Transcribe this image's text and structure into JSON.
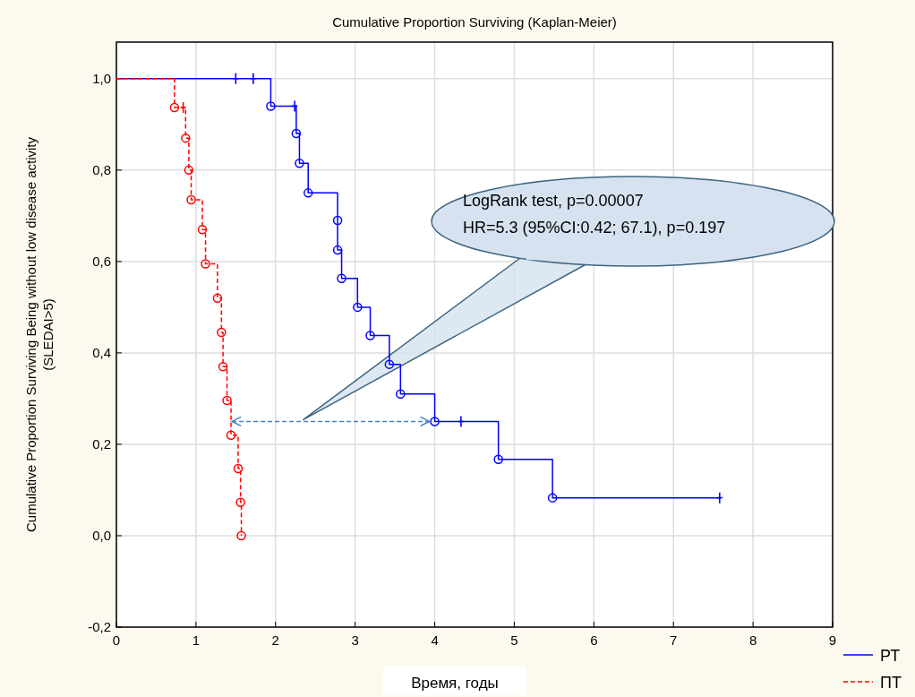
{
  "chart_data": {
    "type": "step",
    "title": "Cumulative Proportion Surviving (Kaplan-Meier)",
    "xlabel": "Время, годы",
    "ylabel": "Cumulative Proportion Surviving Being without low disease activity\n(SLEDAI>5)",
    "xlim": [
      0,
      9
    ],
    "xticks": [
      0,
      1,
      2,
      3,
      4,
      5,
      6,
      7,
      8,
      9
    ],
    "ylim": [
      -0.2,
      1.08
    ],
    "yticks": [
      {
        "value": -0.2,
        "label": "-0,2"
      },
      {
        "value": 0,
        "label": "0,0"
      },
      {
        "value": 0.2,
        "label": "0,2"
      },
      {
        "value": 0.4,
        "label": "0,4"
      },
      {
        "value": 0.6,
        "label": "0,6"
      },
      {
        "value": 0.8,
        "label": "0,8"
      },
      {
        "value": 1,
        "label": "1,0"
      }
    ],
    "grid": true,
    "legend": "bottom right",
    "annotations": [
      "LogRank test, p=0.00007",
      "HR=5.3 (95%CI:0.42; 67.1), p=0.197"
    ],
    "series": [
      {
        "name": "РТ",
        "color": "#0000ff",
        "line_style": "solid",
        "marker": "none",
        "x": [
          0,
          1.94,
          2.26,
          2.3,
          2.41,
          2.78,
          2.78,
          2.83,
          3.03,
          3.19,
          3.43,
          3.57,
          4.0,
          4.8,
          5.48,
          7.58
        ],
        "values": [
          1,
          0.94,
          0.88,
          0.815,
          0.75,
          0.69,
          0.625,
          0.563,
          0.5,
          0.438,
          0.375,
          0.31,
          0.25,
          0.167,
          0.083,
          0.083
        ]
      },
      {
        "name": "ПТ",
        "color": "#ff0000",
        "line_style": "dashed",
        "marker": "none",
        "x": [
          0,
          0.73,
          0.87,
          0.91,
          0.94,
          1.08,
          1.12,
          1.27,
          1.32,
          1.34,
          1.39,
          1.44,
          1.53,
          1.56,
          1.57
        ],
        "values": [
          1,
          0.937,
          0.87,
          0.8,
          0.735,
          0.67,
          0.595,
          0.52,
          0.445,
          0.37,
          0.296,
          0.22,
          0.147,
          0.073,
          0
        ]
      },
      {
        "type": "scatter",
        "color": "#0000ff",
        "marker": "circle",
        "x": [
          1.94,
          2.26,
          2.3,
          2.41,
          2.78,
          2.78,
          2.83,
          3.03,
          3.19,
          3.43,
          3.57,
          4.0,
          4.8,
          5.48
        ],
        "values": [
          0.94,
          0.88,
          0.815,
          0.75,
          0.69,
          0.625,
          0.563,
          0.5,
          0.438,
          0.375,
          0.31,
          0.25,
          0.167,
          0.083
        ]
      },
      {
        "type": "scatter",
        "color": "#ff0000",
        "marker": "circle",
        "x": [
          0.73,
          0.87,
          0.91,
          0.94,
          1.08,
          1.12,
          1.27,
          1.32,
          1.34,
          1.39,
          1.44,
          1.53,
          1.56,
          1.57
        ],
        "values": [
          0.937,
          0.87,
          0.8,
          0.735,
          0.67,
          0.595,
          0.52,
          0.445,
          0.37,
          0.296,
          0.22,
          0.147,
          0.073,
          0
        ]
      },
      {
        "type": "scatter",
        "color": "#0000ff",
        "marker": "cross",
        "x": [
          1.5,
          1.72,
          2.24,
          4.33,
          7.58
        ],
        "values": [
          1,
          1,
          0.94,
          0.25,
          0.083
        ]
      },
      {
        "type": "scatter",
        "color": "#ff0000",
        "marker": "cross",
        "x": [
          0.84
        ],
        "values": [
          0.937
        ]
      }
    ]
  }
}
